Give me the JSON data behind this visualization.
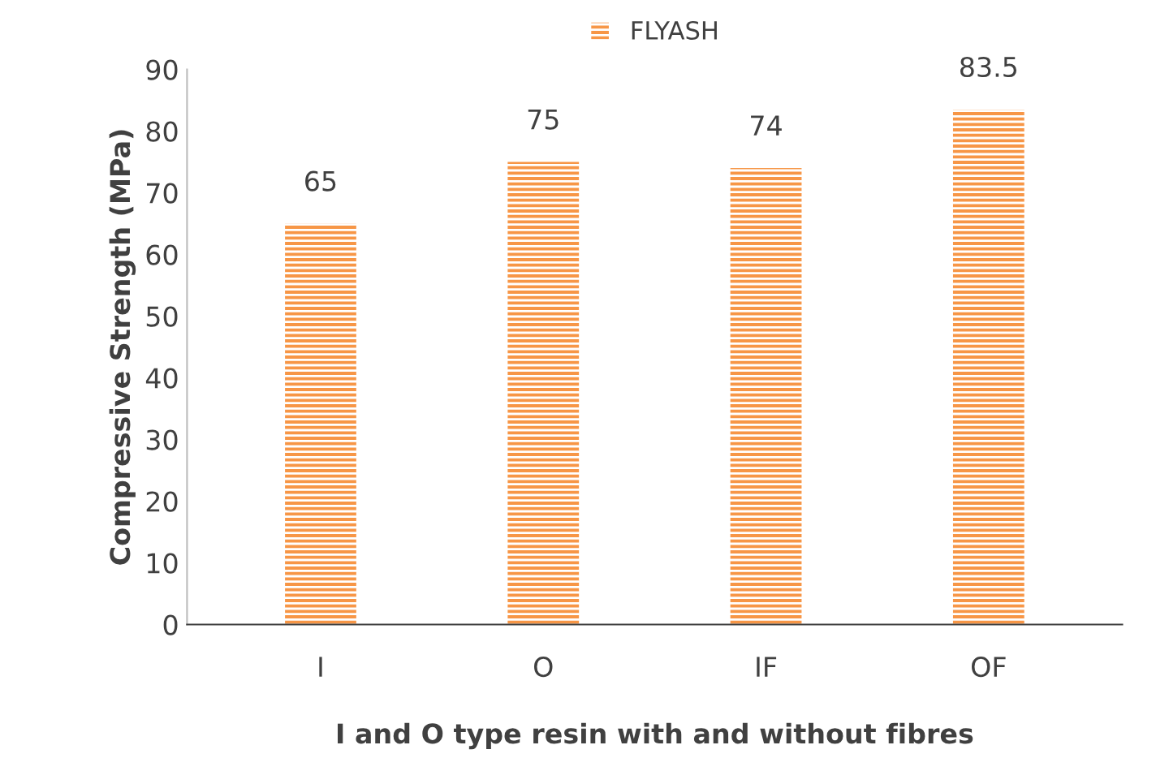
{
  "chart_data": {
    "type": "bar",
    "xlabel": "I and O type resin with and without fibres",
    "ylabel": "Compressive Strength (MPa)",
    "categories": [
      "I",
      "O",
      "IF",
      "OF"
    ],
    "series": [
      {
        "name": "FLYASH",
        "color": "#f79646",
        "values": [
          65,
          75,
          74,
          83.5
        ]
      }
    ],
    "ylim": [
      0,
      90
    ],
    "yticks": [
      0,
      10,
      20,
      30,
      40,
      50,
      60,
      70,
      80,
      90
    ],
    "grid": false,
    "legend": "top",
    "data_labels": true
  }
}
